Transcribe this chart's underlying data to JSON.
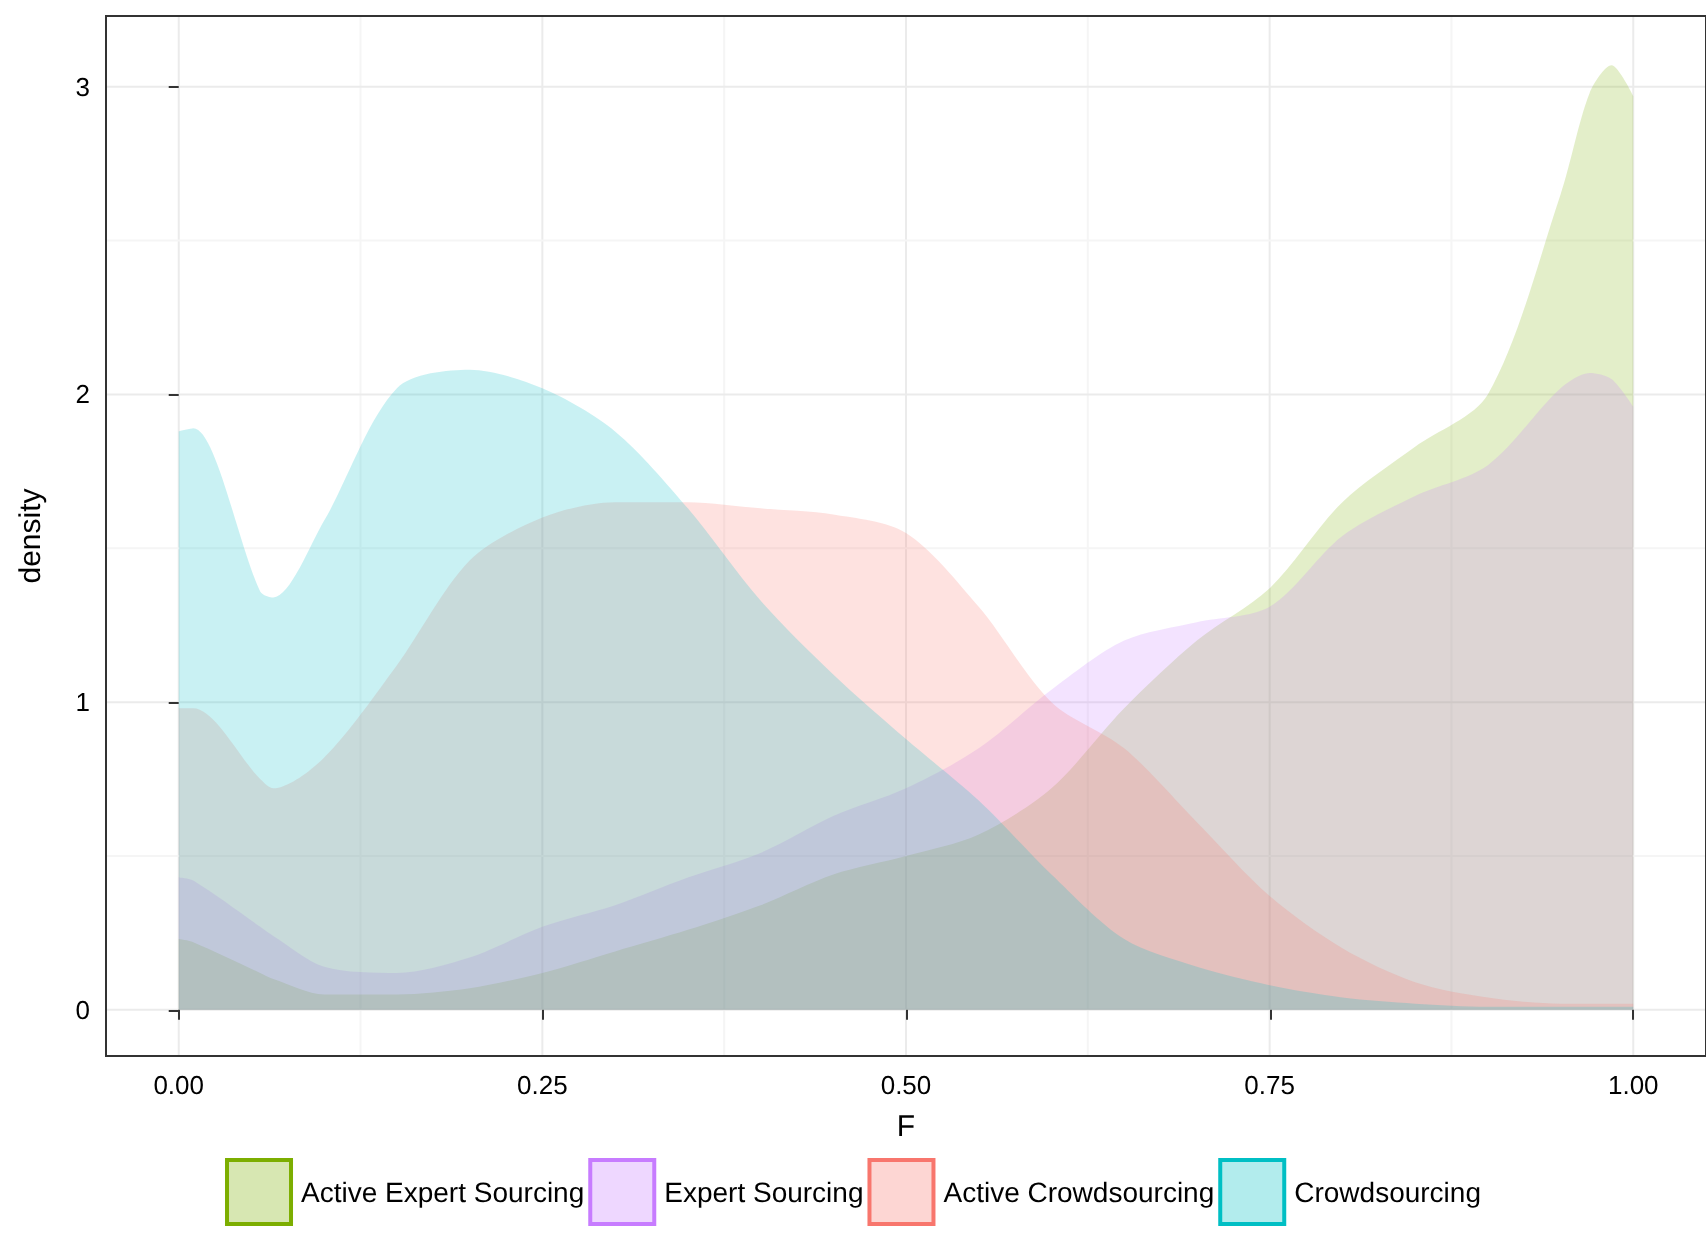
{
  "chart_data": {
    "type": "area",
    "xlabel": "F",
    "ylabel": "density",
    "x": [
      0,
      0.01,
      0.056,
      0.065,
      0.1,
      0.15,
      0.2,
      0.25,
      0.3,
      0.35,
      0.4,
      0.45,
      0.5,
      0.55,
      0.6,
      0.65,
      0.7,
      0.75,
      0.8,
      0.85,
      0.9,
      0.95,
      0.97,
      0.985,
      1
    ],
    "series": [
      {
        "name": "Active Expert Sourcing",
        "color": "#7cae00",
        "values": [
          0.23,
          0.22,
          0.12,
          0.1,
          0.05,
          0.05,
          0.07,
          0.12,
          0.19,
          0.26,
          0.34,
          0.44,
          0.5,
          0.57,
          0.72,
          0.98,
          1.2,
          1.37,
          1.65,
          1.83,
          2.0,
          2.65,
          2.98,
          3.07,
          2.97
        ]
      },
      {
        "name": "Expert Sourcing",
        "color": "#c77cff",
        "values": [
          0.43,
          0.42,
          0.27,
          0.24,
          0.14,
          0.12,
          0.17,
          0.27,
          0.34,
          0.43,
          0.51,
          0.63,
          0.72,
          0.85,
          1.04,
          1.2,
          1.26,
          1.31,
          1.54,
          1.67,
          1.77,
          2.02,
          2.07,
          2.05,
          1.96
        ]
      },
      {
        "name": "Active Crowdsourcing",
        "color": "#f8766d",
        "values": [
          0.98,
          0.98,
          0.75,
          0.72,
          0.82,
          1.12,
          1.46,
          1.6,
          1.65,
          1.65,
          1.63,
          1.61,
          1.55,
          1.31,
          1.0,
          0.85,
          0.61,
          0.37,
          0.2,
          0.09,
          0.04,
          0.02,
          0.02,
          0.02,
          0.02
        ]
      },
      {
        "name": "Crowdsourcing",
        "color": "#00bfc4",
        "values": [
          1.88,
          1.89,
          1.36,
          1.34,
          1.59,
          2.02,
          2.08,
          2.02,
          1.88,
          1.63,
          1.33,
          1.09,
          0.88,
          0.68,
          0.44,
          0.23,
          0.14,
          0.08,
          0.04,
          0.02,
          0.01,
          0.01,
          0.01,
          0.01,
          0.01
        ]
      }
    ],
    "xlim": [
      -0.05,
      1.05
    ],
    "xticks": [
      {
        "value": 0,
        "label": "0.00"
      },
      {
        "value": 0.25,
        "label": "0.25"
      },
      {
        "value": 0.5,
        "label": "0.50"
      },
      {
        "value": 0.75,
        "label": "0.75"
      },
      {
        "value": 1,
        "label": "1.00"
      }
    ],
    "ylim": [
      -0.15,
      3.23
    ],
    "yticks": [
      0,
      1,
      2,
      3
    ],
    "grid": true,
    "legend": "bottom",
    "marker": "none"
  }
}
